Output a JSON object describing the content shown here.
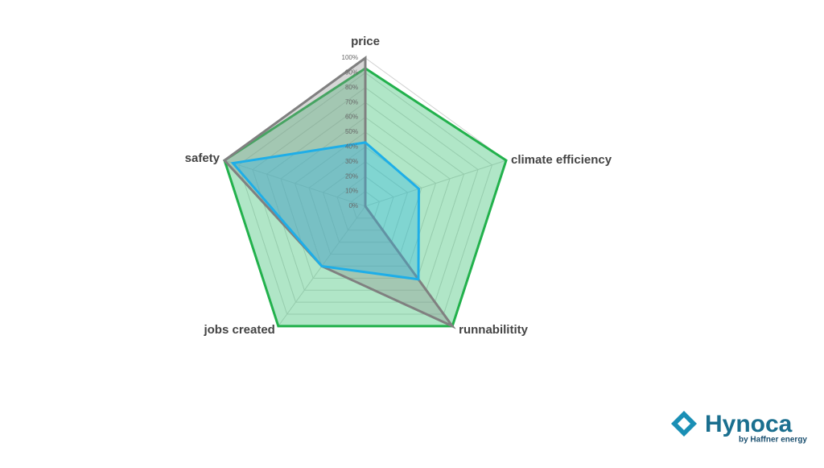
{
  "chart_data": {
    "type": "radar",
    "categories": [
      "price",
      "climate efficiency",
      "runnabilitity",
      "jobs created",
      "safety"
    ],
    "series": [
      {
        "color": "#22b14c",
        "fill": "rgba(80,200,130,0.45)",
        "values": [
          93,
          100,
          100,
          100,
          100
        ]
      },
      {
        "color": "#808080",
        "fill": "rgba(140,140,140,0.35)",
        "values": [
          100,
          0,
          100,
          50,
          100
        ]
      },
      {
        "color": "#1eaee8",
        "fill": "rgba(40,180,230,0.35)",
        "values": [
          43,
          38,
          61,
          50,
          94
        ]
      }
    ],
    "rlim": [
      0,
      100
    ],
    "rticks": [
      {
        "value": 0,
        "label": "0%"
      },
      {
        "value": 10,
        "label": "10%"
      },
      {
        "value": 20,
        "label": "20%"
      },
      {
        "value": 30,
        "label": "30%"
      },
      {
        "value": 40,
        "label": "40%"
      },
      {
        "value": 50,
        "label": "50%"
      },
      {
        "value": 60,
        "label": "60%"
      },
      {
        "value": 70,
        "label": "70%"
      },
      {
        "value": 80,
        "label": "80%"
      },
      {
        "value": 90,
        "label": "90%"
      },
      {
        "value": 100,
        "label": "100%"
      }
    ],
    "grid": true
  },
  "logo": {
    "name": "Hynoca",
    "tagline": "by Haffner energy"
  }
}
